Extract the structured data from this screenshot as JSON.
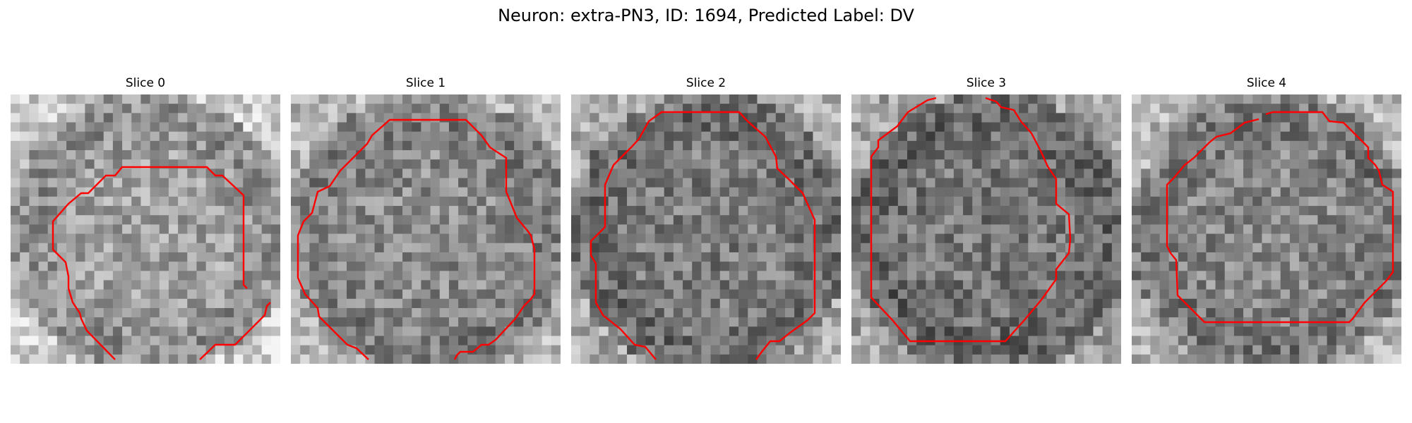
{
  "figure": {
    "title": "Neuron: extra-PN3, ID: 1694, Predicted Label: DV"
  },
  "panels": [
    {
      "title": "Slice 0"
    },
    {
      "title": "Slice 1"
    },
    {
      "title": "Slice 2"
    },
    {
      "title": "Slice 3"
    },
    {
      "title": "Slice 4"
    }
  ],
  "colors": {
    "contour": "#ff0000",
    "background": "#ffffff"
  }
}
